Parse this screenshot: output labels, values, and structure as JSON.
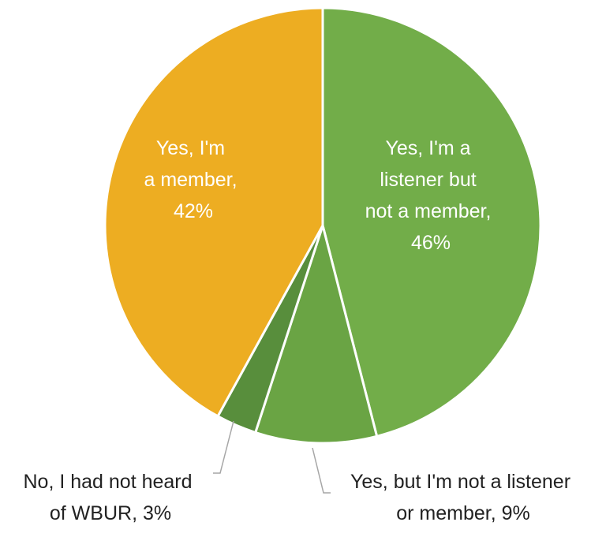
{
  "chart_data": {
    "type": "pie",
    "title": "",
    "slices": [
      {
        "category": "Yes, I'm a listener but not a member",
        "value": 46,
        "color": "#72AD49",
        "label_lines": [
          "Yes, I'm a",
          "listener but",
          "not a member,",
          "46%"
        ]
      },
      {
        "category": "Yes, but I'm not a listener or member",
        "value": 9,
        "color": "#6AA444",
        "label_lines": [
          "Yes, but I'm not a listener",
          "or member, 9%"
        ]
      },
      {
        "category": "No, I had not heard of WBUR",
        "value": 3,
        "color": "#588E3C",
        "label_lines": [
          "No, I had not heard",
          "of WBUR, 3%"
        ]
      },
      {
        "category": "Yes, I'm a member",
        "value": 42,
        "color": "#EDAD22",
        "label_lines": [
          "Yes, I'm",
          "a member,",
          "42%"
        ]
      }
    ]
  }
}
